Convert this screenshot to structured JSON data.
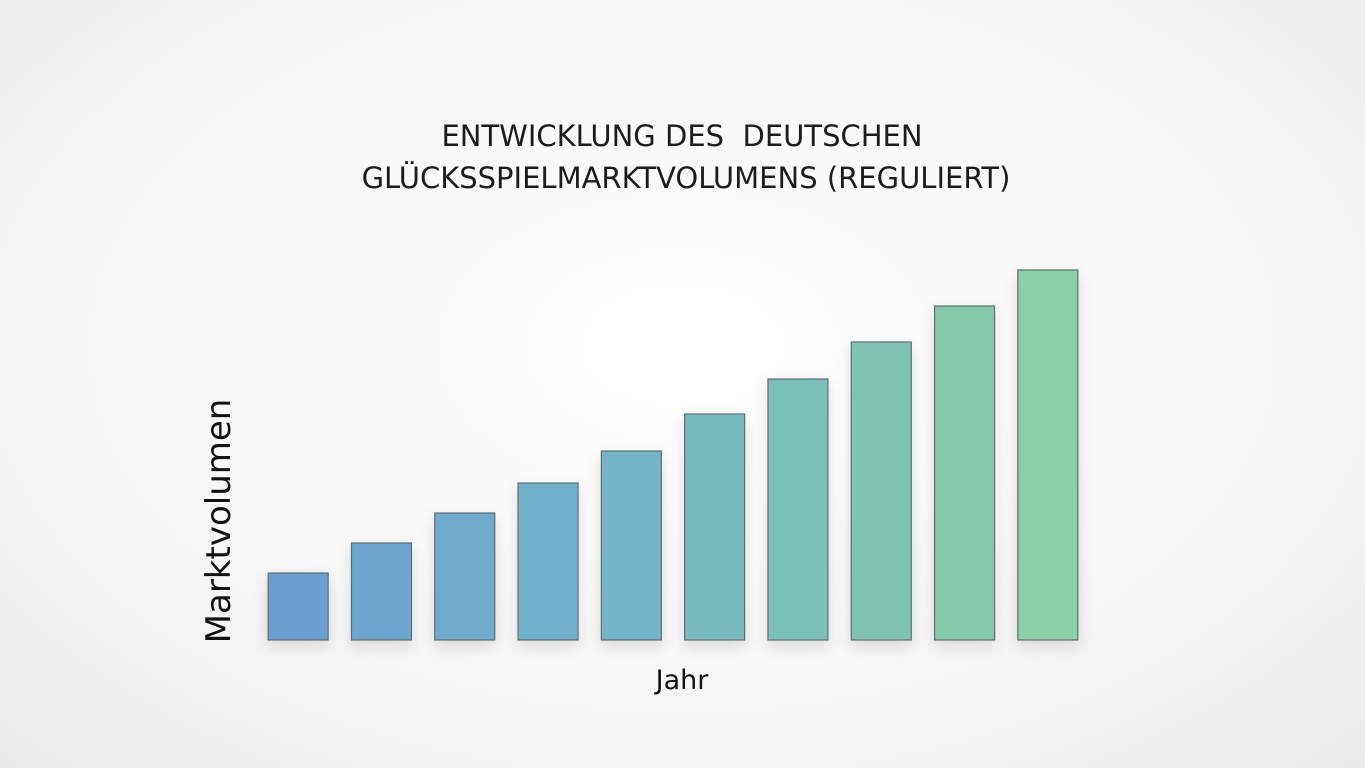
{
  "chart_data": {
    "type": "bar",
    "title": [
      "ENTWICKLUNG DES  DEUTSCHEN",
      "GLÜCKSSPIELMARKTVOLUMENS (REGULIERT)"
    ],
    "x_label": "Jahr",
    "y_label": "Marktvolumen",
    "categories": [
      null,
      null,
      null,
      null,
      null,
      null,
      null,
      null,
      null,
      null
    ],
    "values": [
      67,
      97,
      127,
      157,
      189,
      226,
      261,
      298,
      334,
      370
    ],
    "colors": [
      "#6b9fd0",
      "#6ea6cf",
      "#70aacd",
      "#72afca",
      "#75b4c6",
      "#78bac0",
      "#7cbfba",
      "#81c4b3",
      "#86c9ad",
      "#8cd0a6"
    ],
    "ylim": [
      0,
      370
    ]
  }
}
